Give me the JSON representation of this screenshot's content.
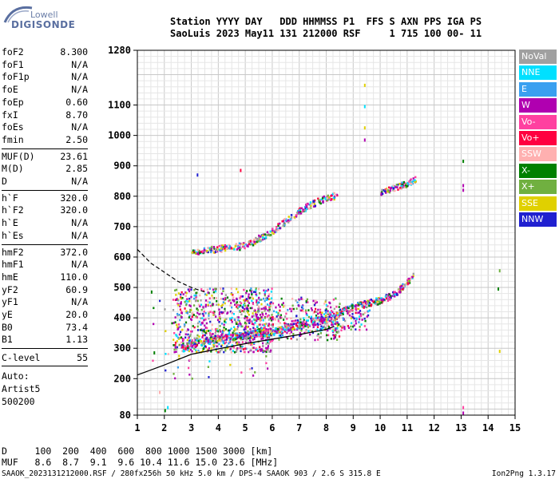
{
  "logo": {
    "line1": "Lowell",
    "line2": "DIGISONDE"
  },
  "header": {
    "line1": "Station YYYY DAY   DDD HHMMSS P1  FFS S AXN PPS IGA PS",
    "line2": "SaoLuis 2023 May11 131 212000 RSF     1 715 100 00- 11"
  },
  "params_group1": [
    {
      "k": "foF2",
      "v": "8.300"
    },
    {
      "k": "foF1",
      "v": "N/A"
    },
    {
      "k": "foF1p",
      "v": "N/A"
    },
    {
      "k": "foE",
      "v": "N/A"
    },
    {
      "k": "foEp",
      "v": "0.60"
    },
    {
      "k": "fxI",
      "v": "8.70"
    },
    {
      "k": "foEs",
      "v": "N/A"
    },
    {
      "k": "fmin",
      "v": "2.50"
    }
  ],
  "params_group2": [
    {
      "k": "MUF(D)",
      "v": "23.61"
    },
    {
      "k": "M(D)",
      "v": "2.85"
    },
    {
      "k": "D",
      "v": "N/A"
    }
  ],
  "params_group3": [
    {
      "k": "h`F",
      "v": "320.0"
    },
    {
      "k": "h`F2",
      "v": "320.0"
    },
    {
      "k": "h`E",
      "v": "N/A"
    },
    {
      "k": "h`Es",
      "v": "N/A"
    }
  ],
  "params_group4": [
    {
      "k": "hmF2",
      "v": "372.0"
    },
    {
      "k": "hmF1",
      "v": "N/A"
    },
    {
      "k": "hmE",
      "v": "110.0"
    },
    {
      "k": "yF2",
      "v": "60.9"
    },
    {
      "k": "yF1",
      "v": "N/A"
    },
    {
      "k": "yE",
      "v": "20.0"
    },
    {
      "k": "B0",
      "v": "73.4"
    },
    {
      "k": "B1",
      "v": "1.13"
    }
  ],
  "clevel": {
    "k": "C-level",
    "v": "55"
  },
  "auto": [
    "Auto:",
    "Artist5",
    "500200"
  ],
  "legend": [
    {
      "label": "NoVal",
      "color": "#a0a0a0"
    },
    {
      "label": "NNE",
      "color": "#00e0ff"
    },
    {
      "label": "E",
      "color": "#3aa0f0"
    },
    {
      "label": "W",
      "color": "#b000b0"
    },
    {
      "label": "Vo-",
      "color": "#ff40a0"
    },
    {
      "label": "Vo+",
      "color": "#ff0040"
    },
    {
      "label": "SSW",
      "color": "#ffb0b0"
    },
    {
      "label": "X-",
      "color": "#008000"
    },
    {
      "label": "X+",
      "color": "#70b040"
    },
    {
      "label": "SSE",
      "color": "#e0d000"
    },
    {
      "label": "NNW",
      "color": "#2020d0"
    }
  ],
  "muf_table": {
    "line1": "D     100  200  400  600  800 1000 1500 3000 [km]",
    "line2": "MUF   8.6  8.7  9.1  9.6 10.4 11.6 15.0 23.6 [MHz]"
  },
  "footer": {
    "left": "SAAOK_2023131212000.RSF / 280fx256h 50 kHz 5.0 km / DPS-4 SAAOK 903 / 2.6 S 315.8 E",
    "right": "Ion2Png 1.3.17"
  },
  "chart_data": {
    "type": "scatter",
    "x_ticks": [
      "1",
      "2",
      "3",
      "4",
      "5",
      "6",
      "7",
      "8",
      "9",
      "10",
      "11",
      "12",
      "13",
      "14",
      "15"
    ],
    "y_ticks": [
      "80",
      "200",
      "300",
      "400",
      "500",
      "600",
      "700",
      "800",
      "900",
      "1000",
      "1100",
      "1280"
    ],
    "xlim": [
      1,
      15
    ],
    "ylim": [
      80,
      1280
    ],
    "grid": true,
    "profile_curve": [
      [
        1,
        212
      ],
      [
        2,
        245
      ],
      [
        3,
        280
      ],
      [
        4,
        298
      ],
      [
        5,
        315
      ],
      [
        6,
        330
      ],
      [
        7,
        345
      ],
      [
        8,
        362
      ],
      [
        8.3,
        372
      ]
    ],
    "dashed_curve": [
      [
        1,
        625
      ],
      [
        1.5,
        580
      ],
      [
        2,
        550
      ],
      [
        2.5,
        520
      ],
      [
        3,
        500
      ],
      [
        3.5,
        485
      ]
    ],
    "trace_o": [
      [
        2.6,
        300
      ],
      [
        3,
        318
      ],
      [
        4,
        335
      ],
      [
        5,
        345
      ],
      [
        6,
        360
      ],
      [
        7,
        380
      ],
      [
        8,
        400
      ],
      [
        8.5,
        420
      ],
      [
        9,
        440
      ],
      [
        10,
        460
      ],
      [
        10.5,
        480
      ],
      [
        11,
        520
      ],
      [
        11.2,
        540
      ]
    ],
    "trace_second": [
      [
        3,
        620
      ],
      [
        4,
        630
      ],
      [
        5,
        640
      ],
      [
        6,
        690
      ],
      [
        7,
        755
      ],
      [
        8,
        800
      ],
      [
        8.4,
        805
      ]
    ],
    "trace_high": [
      [
        10,
        815
      ],
      [
        10.5,
        830
      ],
      [
        11,
        845
      ],
      [
        11.3,
        860
      ]
    ],
    "scatter_clusters": [
      {
        "x_range": [
          2.3,
          6.0
        ],
        "y_range": [
          290,
          500
        ],
        "count": 750
      },
      {
        "x_range": [
          5.0,
          8.5
        ],
        "y_range": [
          330,
          470
        ],
        "count": 350
      },
      {
        "x_range": [
          7.5,
          9.6
        ],
        "y_range": [
          360,
          430
        ],
        "count": 120
      },
      {
        "x_range": [
          1.5,
          6.0
        ],
        "y_range": [
          200,
          500
        ],
        "count": 70
      }
    ],
    "isolated_points": [
      [
        9.4,
        1170
      ],
      [
        9.4,
        1100
      ],
      [
        9.4,
        1030
      ],
      [
        9.4,
        990
      ],
      [
        13.05,
        920
      ],
      [
        13.05,
        840
      ],
      [
        13.05,
        825
      ],
      [
        14.4,
        560
      ],
      [
        14.35,
        500
      ],
      [
        14.4,
        295
      ],
      [
        13.05,
        110
      ],
      [
        13.05,
        92
      ],
      [
        3.2,
        875
      ],
      [
        4.8,
        890
      ],
      [
        1.5,
        490
      ],
      [
        1.6,
        290
      ],
      [
        1.8,
        160
      ],
      [
        2.0,
        100
      ],
      [
        2.1,
        110
      ]
    ]
  }
}
